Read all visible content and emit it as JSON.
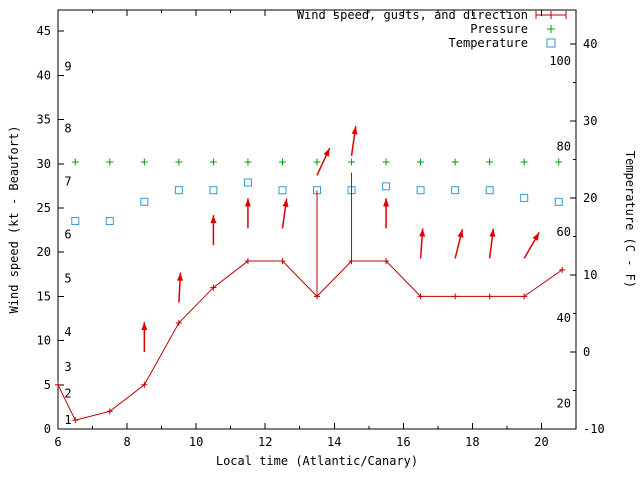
{
  "chart_data": {
    "type": "line",
    "title": "",
    "xlabel": "Local time (Atlantic/Canary)",
    "ylabel_left": "Wind speed (kt - Beaufort)",
    "ylabel_right": "Temperature (C - F)",
    "axis_label_color": "#c00000",
    "background": "#ffffff",
    "x_range": [
      6,
      21
    ],
    "y_left_range": [
      0,
      47.4
    ],
    "y_right_range": [
      -10,
      44.4
    ],
    "x_ticks": [
      6,
      8,
      10,
      12,
      14,
      16,
      18,
      20
    ],
    "x_minor_ticks": [
      7,
      9,
      11,
      13,
      15,
      17,
      19,
      21
    ],
    "y_left_ticks": [
      0,
      5,
      10,
      15,
      20,
      25,
      30,
      35,
      40,
      45
    ],
    "y_right_ticks": [
      -10,
      0,
      10,
      20,
      30,
      40
    ],
    "y_right_minor_ticks": [
      -5,
      5,
      15,
      25,
      35
    ],
    "beaufort_scale_labels": [
      {
        "label": "1",
        "kt": 1
      },
      {
        "label": "2",
        "kt": 4
      },
      {
        "label": "3",
        "kt": 7
      },
      {
        "label": "4",
        "kt": 11
      },
      {
        "label": "5",
        "kt": 17
      },
      {
        "label": "6",
        "kt": 22
      },
      {
        "label": "7",
        "kt": 28
      },
      {
        "label": "8",
        "kt": 34
      },
      {
        "label": "9",
        "kt": 41
      }
    ],
    "fahrenheit_scale_labels": [
      {
        "label": "20",
        "c": -6.7
      },
      {
        "label": "40",
        "c": 4.4
      },
      {
        "label": "60",
        "c": 15.6
      },
      {
        "label": "80",
        "c": 26.7
      },
      {
        "label": "100",
        "c": 37.8
      }
    ],
    "legend": [
      {
        "label": "Wind speed, gusts, and direction",
        "marker": "wind-sample",
        "color": "#c00000"
      },
      {
        "label": "Pressure",
        "marker": "plus",
        "color": "#00a000"
      },
      {
        "label": "Temperature",
        "marker": "square",
        "color": "#3399cc"
      }
    ],
    "series": {
      "wind_speed": {
        "color": "#c00000",
        "x": [
          6,
          6.5,
          7.5,
          8.5,
          9.5,
          10.5,
          11.5,
          12.5,
          13.5,
          14.5,
          15.5,
          16.5,
          17.5,
          18.5,
          19.5,
          20.6
        ],
        "kt": [
          5,
          1,
          2,
          5,
          12,
          16,
          19,
          19,
          15,
          19,
          19,
          15,
          15,
          15,
          15,
          18
        ]
      },
      "gusts": {
        "color": "#c00000",
        "bars": [
          {
            "x": 13.5,
            "from_kt": 15,
            "to_kt": 27
          },
          {
            "x": 14.5,
            "from_kt": 19,
            "to_kt": 29
          }
        ]
      },
      "wind_direction_arrows": {
        "color": "#dd0000",
        "arrows": [
          {
            "x": 8.5,
            "kt": 8.7,
            "angle_deg": 0
          },
          {
            "x": 9.5,
            "kt": 14.3,
            "angle_deg": 3
          },
          {
            "x": 10.5,
            "kt": 20.8,
            "angle_deg": 0
          },
          {
            "x": 11.5,
            "kt": 22.7,
            "angle_deg": 0
          },
          {
            "x": 12.5,
            "kt": 22.7,
            "angle_deg": 8
          },
          {
            "x": 13.5,
            "kt": 28.7,
            "angle_deg": 25
          },
          {
            "x": 14.5,
            "kt": 30.9,
            "angle_deg": 8
          },
          {
            "x": 15.5,
            "kt": 22.7,
            "angle_deg": 0
          },
          {
            "x": 16.5,
            "kt": 19.3,
            "angle_deg": 4
          },
          {
            "x": 17.5,
            "kt": 19.3,
            "angle_deg": 14
          },
          {
            "x": 18.5,
            "kt": 19.3,
            "angle_deg": 7
          },
          {
            "x": 19.5,
            "kt": 19.3,
            "angle_deg": 30
          }
        ]
      },
      "pressure": {
        "color": "#00a000",
        "axis": "left",
        "x": [
          6.5,
          7.5,
          8.5,
          9.5,
          10.5,
          11.5,
          12.5,
          13.5,
          14.5,
          15.5,
          16.5,
          17.5,
          18.5,
          19.5,
          20.5
        ],
        "value": [
          30.2,
          30.2,
          30.2,
          30.2,
          30.2,
          30.2,
          30.2,
          30.2,
          30.2,
          30.2,
          30.2,
          30.2,
          30.2,
          30.2,
          30.2
        ]
      },
      "temperature": {
        "color": "#3399cc",
        "x": [
          6.5,
          7.5,
          8.5,
          9.5,
          10.5,
          11.5,
          12.5,
          13.5,
          14.5,
          15.5,
          16.5,
          17.5,
          18.5,
          19.5,
          20.5
        ],
        "c": [
          17,
          17,
          19.5,
          21,
          21,
          22,
          21,
          21,
          21,
          21.5,
          21,
          21,
          21,
          20,
          19.5
        ]
      }
    }
  }
}
